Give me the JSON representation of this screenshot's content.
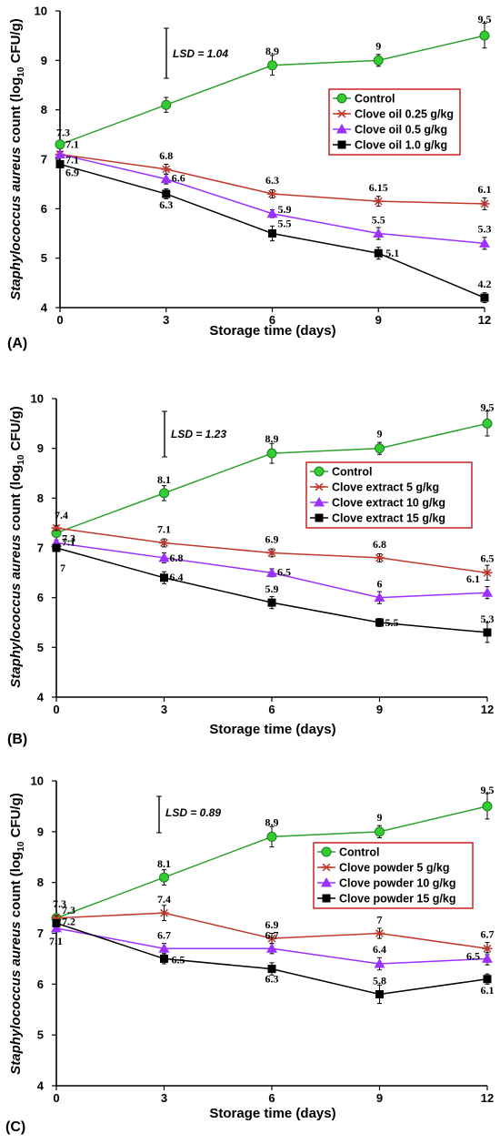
{
  "chart_data": [
    {
      "type": "line",
      "panel_label": "(A)",
      "xlabel": "Storage time (days)",
      "ylabel_parts": [
        "Staphylococcus aureus",
        " count (log",
        "10",
        " CFU/g)"
      ],
      "x": [
        0,
        3,
        6,
        9,
        12
      ],
      "x_ticks": [
        "0",
        "3",
        "6",
        "9",
        "12"
      ],
      "y_ticks": [
        "4",
        "5",
        "6",
        "7",
        "8",
        "9",
        "10"
      ],
      "ylim": [
        4,
        10
      ],
      "xlim": [
        0,
        12
      ],
      "lsd": {
        "text": "LSD = 1.04",
        "value": 1.04
      },
      "legend_position": "right-middle",
      "series": [
        {
          "name": "Control",
          "marker": "circle",
          "color": "#2ca02c",
          "values": [
            7.3,
            8.1,
            8.9,
            9.0,
            9.5
          ],
          "labels": [
            "7.3",
            "",
            "8.9",
            "9",
            "9.5"
          ]
        },
        {
          "name": "Clove oil 0.25 g/kg",
          "marker": "star",
          "color": "#c0392b",
          "values": [
            7.1,
            6.8,
            6.3,
            6.15,
            6.1
          ],
          "labels": [
            "7.1",
            "6.8",
            "6.3",
            "6.15",
            "6.1"
          ]
        },
        {
          "name": "Clove oil 0.5 g/kg",
          "marker": "triangle",
          "color": "#9b30ff",
          "values": [
            7.1,
            6.6,
            5.9,
            5.5,
            5.3
          ],
          "labels": [
            "7.1",
            "6.6",
            "5.9",
            "5.5",
            "5.3"
          ]
        },
        {
          "name": "Clove oil 1.0 g/kg",
          "marker": "square",
          "color": "#000000",
          "values": [
            6.9,
            6.3,
            5.5,
            5.1,
            4.2
          ],
          "labels": [
            "6.9",
            "6.3",
            "5.5",
            "5.1",
            "4.2"
          ]
        }
      ]
    },
    {
      "type": "line",
      "panel_label": "(B)",
      "xlabel": "Storage time (days)",
      "ylabel_parts": [
        "Staphylococcus aureus",
        " count (log",
        "10",
        " CFU/g)"
      ],
      "x": [
        0,
        3,
        6,
        9,
        12
      ],
      "x_ticks": [
        "0",
        "3",
        "6",
        "9",
        "12"
      ],
      "y_ticks": [
        "4",
        "5",
        "6",
        "7",
        "8",
        "9",
        "10"
      ],
      "ylim": [
        4,
        10
      ],
      "xlim": [
        0,
        12
      ],
      "lsd": {
        "text": "LSD = 1.23",
        "value": 1.23
      },
      "legend_position": "right-middle",
      "series": [
        {
          "name": "Control",
          "marker": "circle",
          "color": "#2ca02c",
          "values": [
            7.3,
            8.1,
            8.9,
            9.0,
            9.5
          ],
          "labels": [
            "7.3",
            "8.1",
            "8.9",
            "9",
            "9.5"
          ]
        },
        {
          "name": "Clove extract 5 g/kg",
          "marker": "star",
          "color": "#c0392b",
          "values": [
            7.4,
            7.1,
            6.9,
            6.8,
            6.5
          ],
          "labels": [
            "7.4",
            "7.1",
            "6.9",
            "6.8",
            "6.5"
          ]
        },
        {
          "name": "Clove extract 10 g/kg",
          "marker": "triangle",
          "color": "#9b30ff",
          "values": [
            7.1,
            6.8,
            6.5,
            6.0,
            6.1
          ],
          "labels": [
            "7.1",
            "6.8",
            "6.5",
            "6",
            "6.1"
          ]
        },
        {
          "name": "Clove extract 15 g/kg",
          "marker": "square",
          "color": "#000000",
          "values": [
            7.0,
            6.4,
            5.9,
            5.5,
            5.3
          ],
          "labels": [
            "7",
            "6.4",
            "5.9",
            "5.5",
            "5.3"
          ]
        }
      ]
    },
    {
      "type": "line",
      "panel_label": "(C)",
      "xlabel": "Storage time (days)",
      "ylabel_parts": [
        "Staphylococcus aureus",
        " count (log",
        "10",
        " CFU/g)"
      ],
      "x": [
        0,
        3,
        6,
        9,
        12
      ],
      "x_ticks": [
        "0",
        "3",
        "6",
        "9",
        "12"
      ],
      "y_ticks": [
        "4",
        "5",
        "6",
        "7",
        "8",
        "9",
        "10"
      ],
      "ylim": [
        4,
        10
      ],
      "xlim": [
        0,
        12
      ],
      "lsd": {
        "text": "LSD = 0.89",
        "value": 0.89
      },
      "legend_position": "right-middle",
      "series": [
        {
          "name": "Control",
          "marker": "circle",
          "color": "#2ca02c",
          "values": [
            7.3,
            8.1,
            8.9,
            9.0,
            9.5
          ],
          "labels": [
            "7.3",
            "8.1",
            "8.9",
            "9",
            "9.5"
          ]
        },
        {
          "name": "Clove powder 5 g/kg",
          "marker": "star",
          "color": "#c0392b",
          "values": [
            7.3,
            7.4,
            6.9,
            7.0,
            6.7
          ],
          "labels": [
            "7.3",
            "7.4",
            "6.9",
            "7",
            "6.7"
          ]
        },
        {
          "name": "Clove powder 10 g/kg",
          "marker": "triangle",
          "color": "#9b30ff",
          "values": [
            7.1,
            6.7,
            6.7,
            6.4,
            6.5
          ],
          "labels": [
            "7.1",
            "6.7",
            "6.7",
            "6.4",
            "6.5"
          ]
        },
        {
          "name": "Clove powder 15 g/kg",
          "marker": "square",
          "color": "#000000",
          "values": [
            7.2,
            6.5,
            6.3,
            5.8,
            6.1
          ],
          "labels": [
            "7.2",
            "6.5",
            "6.3",
            "5.8",
            "6.1"
          ]
        }
      ]
    }
  ],
  "style": {
    "legend_border_color": "#c00000",
    "axis_color": "#000000"
  }
}
